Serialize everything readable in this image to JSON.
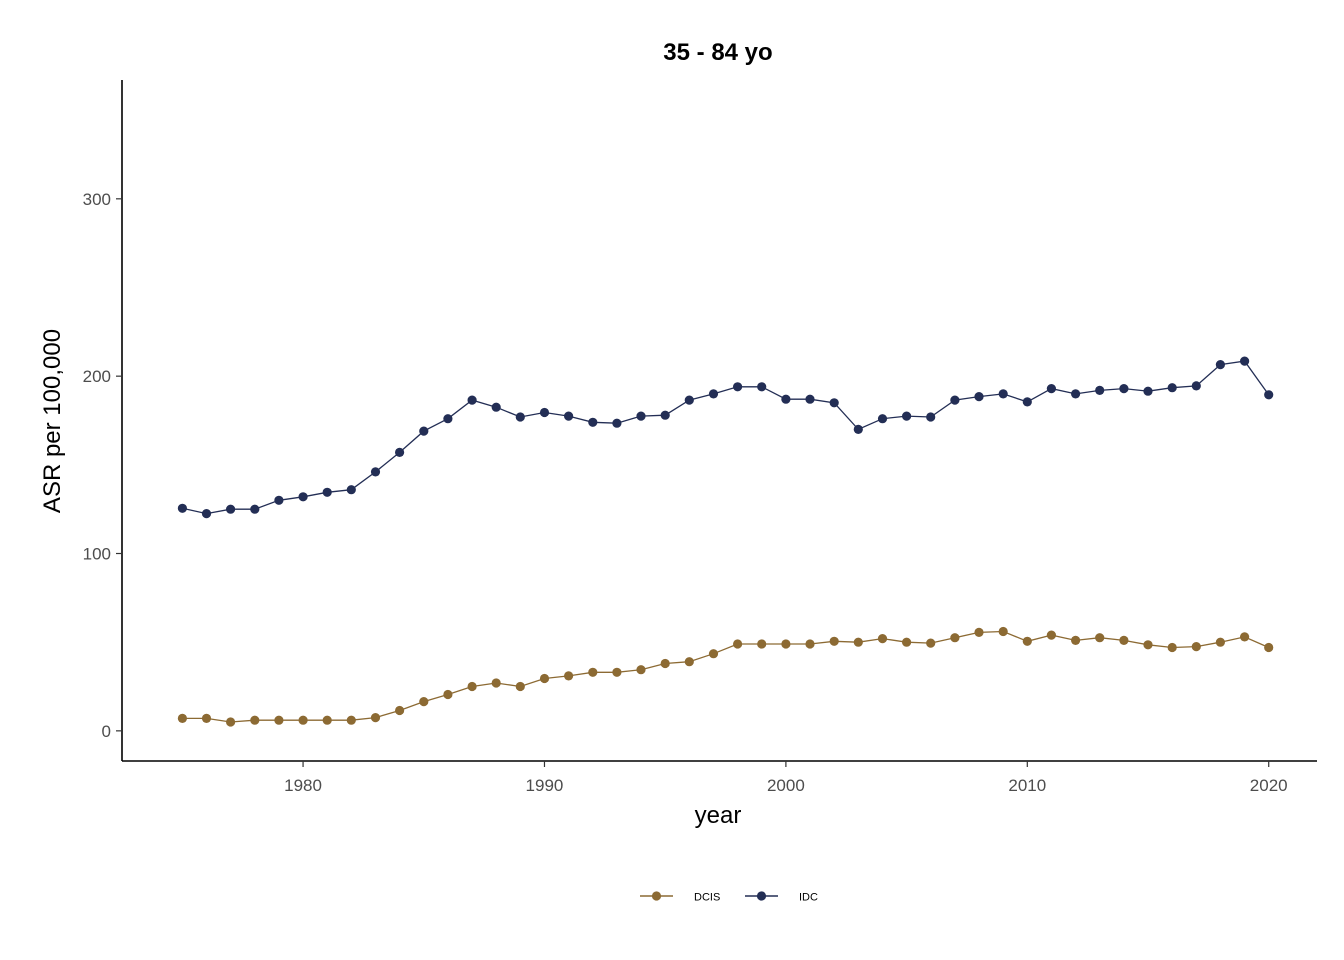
{
  "chart_data": {
    "type": "line",
    "title": "35 - 84 yo",
    "xlabel": "year",
    "ylabel": "ASR per 100,000",
    "xlim": [
      1972.5,
      2022.0
    ],
    "ylim": [
      -17,
      367
    ],
    "x_ticks": [
      1980,
      1990,
      2000,
      2010,
      2020
    ],
    "x_tick_labels": [
      "1980",
      "1990",
      "2000",
      "2010",
      "2020"
    ],
    "y_ticks": [
      0,
      100,
      200,
      300
    ],
    "y_tick_labels": [
      "0",
      "100",
      "200",
      "300"
    ],
    "grid": false,
    "legend_position": "bottom",
    "x": [
      1975,
      1976,
      1977,
      1978,
      1979,
      1980,
      1981,
      1982,
      1983,
      1984,
      1985,
      1986,
      1987,
      1988,
      1989,
      1990,
      1991,
      1992,
      1993,
      1994,
      1995,
      1996,
      1997,
      1998,
      1999,
      2000,
      2001,
      2002,
      2003,
      2004,
      2005,
      2006,
      2007,
      2008,
      2009,
      2010,
      2011,
      2012,
      2013,
      2014,
      2015,
      2016,
      2017,
      2018,
      2019,
      2020
    ],
    "series": [
      {
        "name": "DCIS",
        "color": "#8C6A33",
        "values": [
          7,
          7,
          5,
          6,
          6,
          6,
          6,
          6,
          7.5,
          11.5,
          16.5,
          20.5,
          25,
          27,
          25,
          29.5,
          31,
          33,
          33,
          34.5,
          38,
          39,
          43.5,
          49,
          49,
          49,
          49,
          50.5,
          50,
          52,
          50,
          49.5,
          52.5,
          55.5,
          56,
          50.5,
          54,
          51,
          52.5,
          51,
          48.5,
          47,
          47.5,
          50,
          53,
          47
        ]
      },
      {
        "name": "IDC",
        "color": "#232E55",
        "values": [
          125.5,
          122.5,
          125,
          125,
          130,
          132,
          134.5,
          136,
          146,
          157,
          169,
          176,
          186.5,
          182.5,
          177,
          179.5,
          177.5,
          174,
          173.5,
          177.5,
          178,
          186.5,
          190,
          194,
          194,
          187,
          187,
          185,
          170,
          176,
          177.5,
          177,
          186.5,
          188.5,
          190,
          185.5,
          193,
          190,
          192,
          193,
          191.5,
          193.5,
          194.5,
          206.5,
          208.5,
          189.5
        ]
      }
    ]
  }
}
